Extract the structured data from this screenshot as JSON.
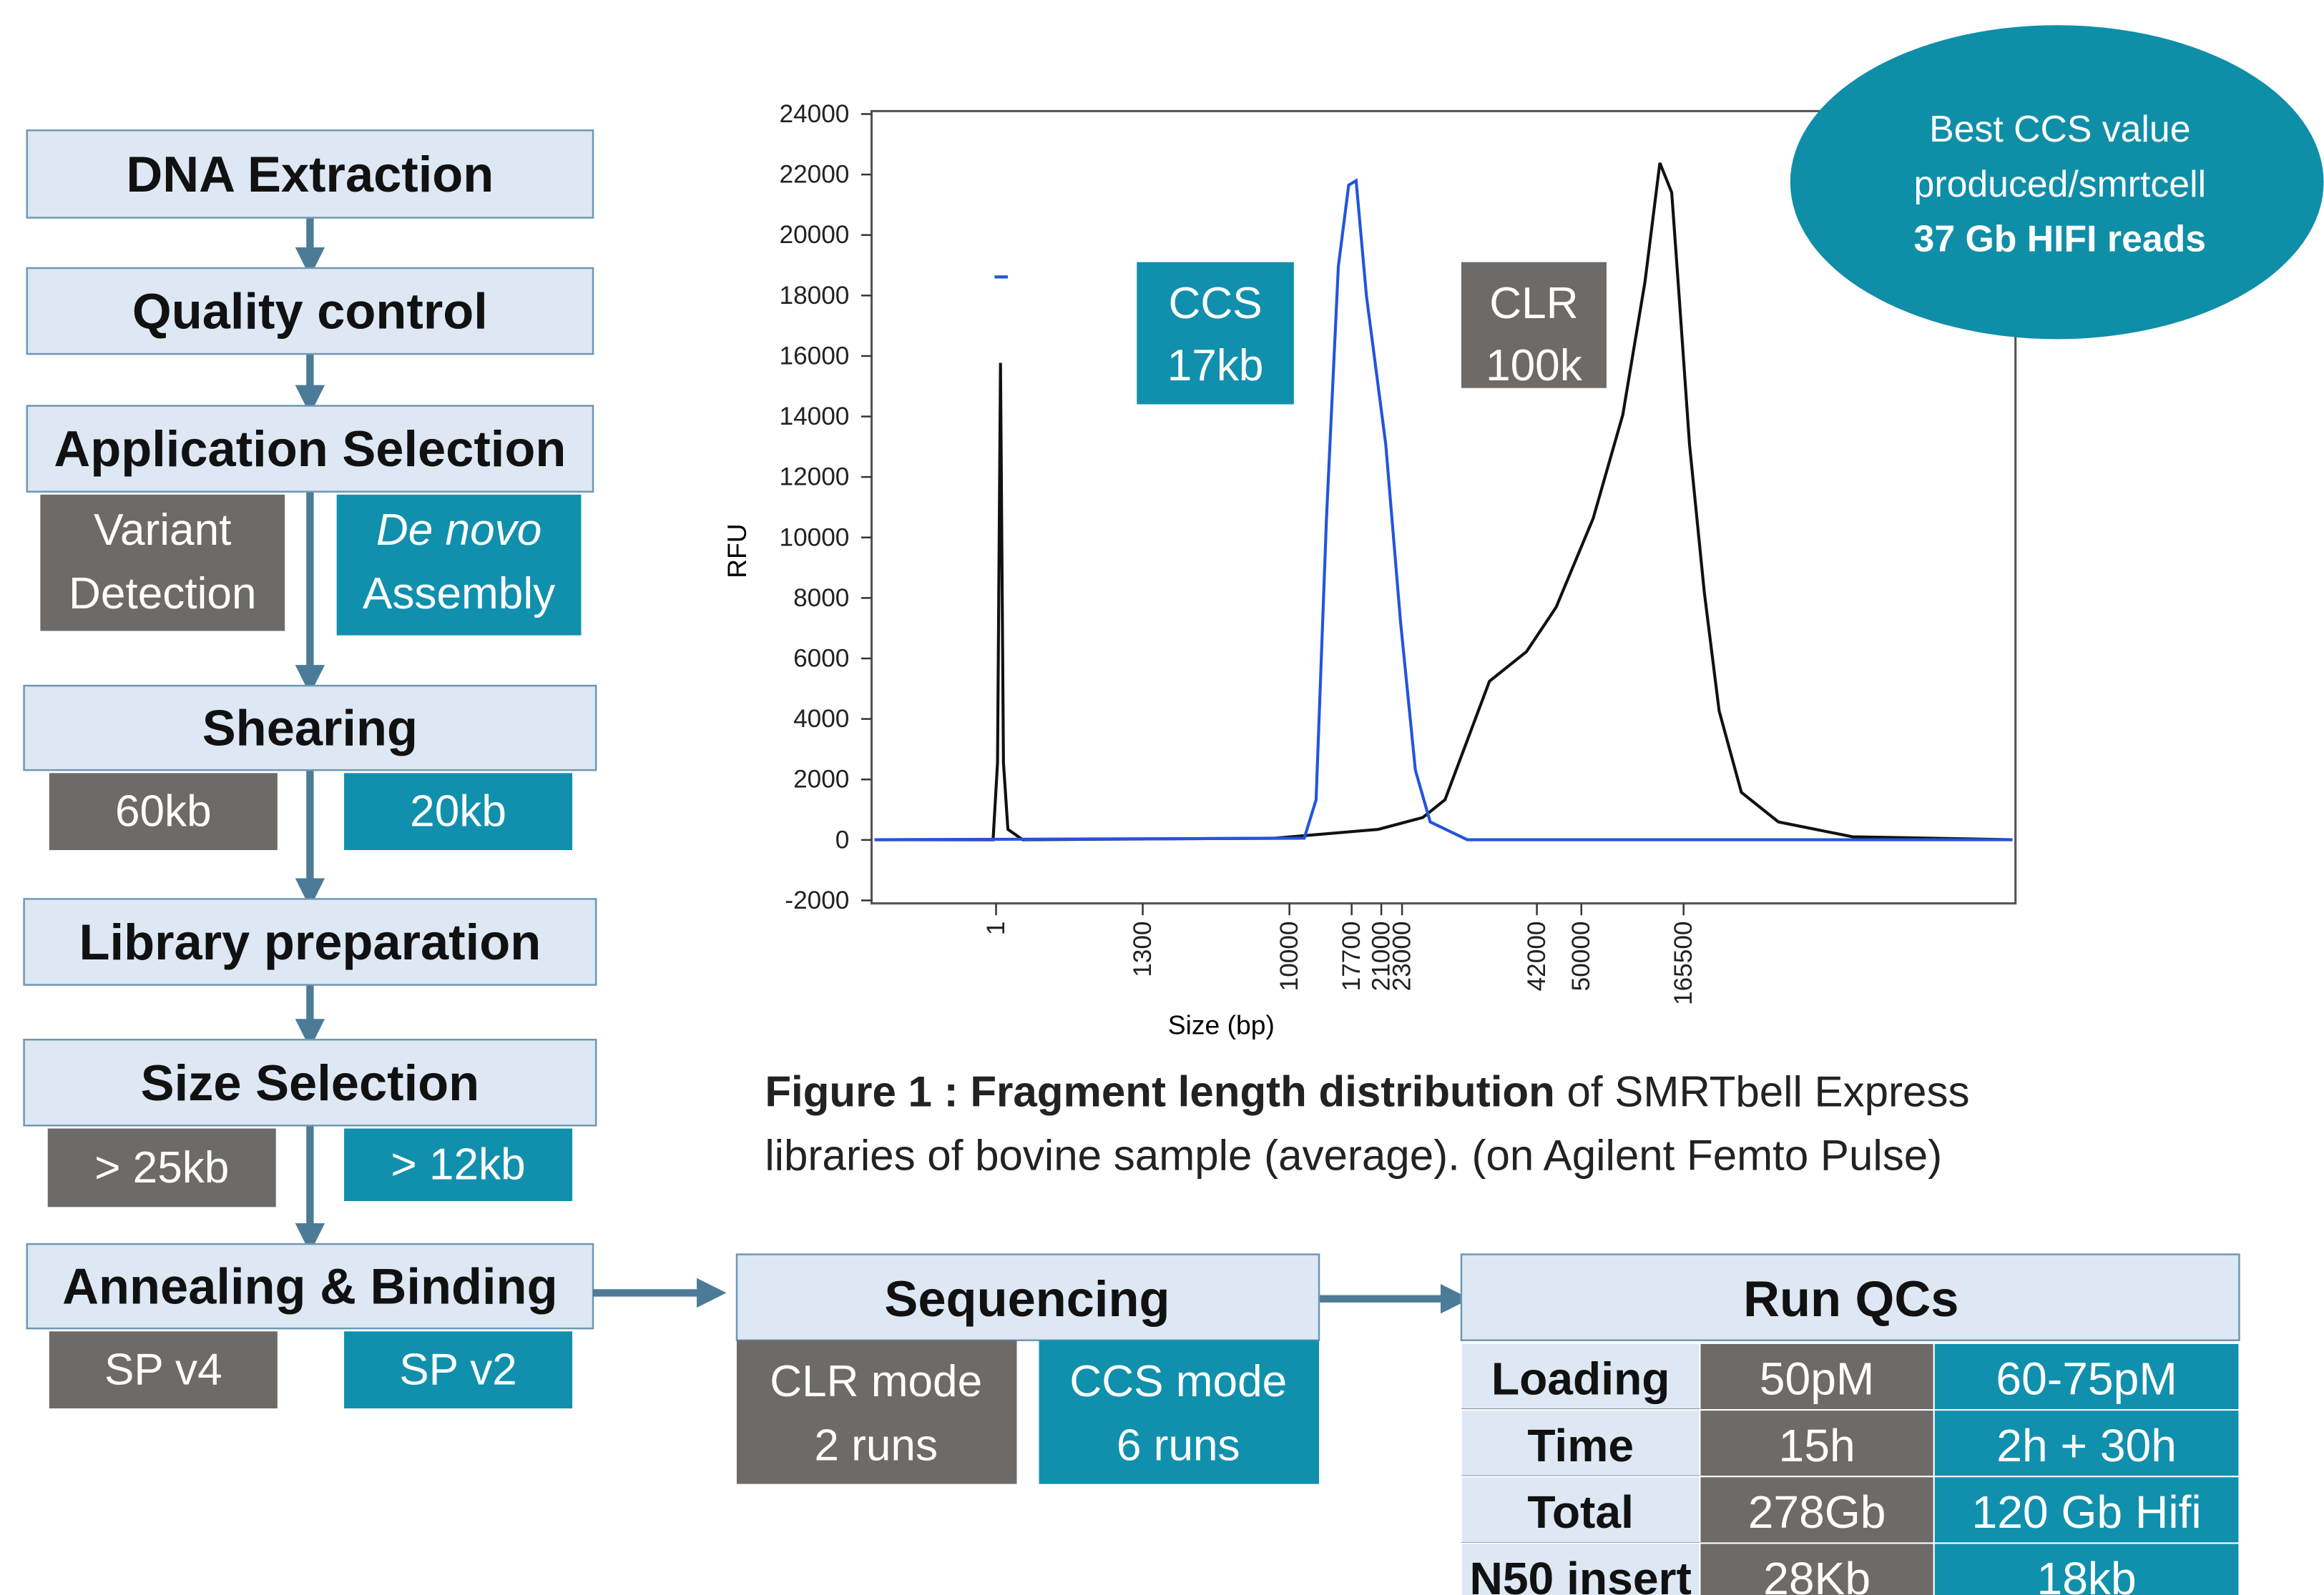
{
  "flow": {
    "steps": [
      {
        "title": "DNA Extraction"
      },
      {
        "title": "Quality control"
      },
      {
        "title": "Application Selection",
        "options": [
          [
            "Variant",
            "Detection"
          ],
          [
            "De novo",
            "Assembly"
          ]
        ]
      },
      {
        "title": "Shearing",
        "options": [
          [
            "60kb"
          ],
          [
            "20kb"
          ]
        ]
      },
      {
        "title": "Library preparation"
      },
      {
        "title": "Size Selection",
        "options": [
          [
            "> 25kb"
          ],
          [
            "> 12kb"
          ]
        ]
      },
      {
        "title": "Annealing & Binding",
        "options": [
          [
            "SP v4"
          ],
          [
            "SP v2"
          ]
        ]
      }
    ]
  },
  "figure": {
    "y_axis_label": "RFU",
    "x_axis_label": "Size (bp)",
    "ylim": [
      -2000,
      24000
    ],
    "yticks": [
      -2000,
      0,
      2000,
      4000,
      6000,
      8000,
      10000,
      12000,
      14000,
      16000,
      18000,
      20000,
      22000,
      24000
    ],
    "xticks": [
      1,
      1300,
      10000,
      17700,
      21000,
      23000,
      42000,
      50000,
      165500
    ],
    "ccs_label": [
      "CCS",
      "17kb"
    ],
    "clr_label": [
      "CLR",
      "100k"
    ],
    "callout": [
      "Best CCS value",
      "produced/smrtcell",
      "37 Gb HIFI reads"
    ],
    "caption": {
      "bold": "Figure 1 : Fragment length distribution",
      "rest": " of SMRTbell Express",
      "line2": "libraries of bovine sample (average). (on Agilent Femto Pulse)"
    }
  },
  "sequencing": {
    "title": "Sequencing",
    "modes": [
      [
        "CLR mode",
        "2 runs"
      ],
      [
        "CCS mode",
        "6 runs"
      ]
    ]
  },
  "run_qcs": {
    "title": "Run QCs",
    "rows": [
      [
        "Loading",
        "50pM",
        "60-75pM"
      ],
      [
        "Time",
        "15h",
        "2h + 30h"
      ],
      [
        "Total",
        "278Gb",
        "120 Gb Hifi"
      ],
      [
        "N50 insert",
        "28Kb",
        "18kb"
      ]
    ]
  }
}
